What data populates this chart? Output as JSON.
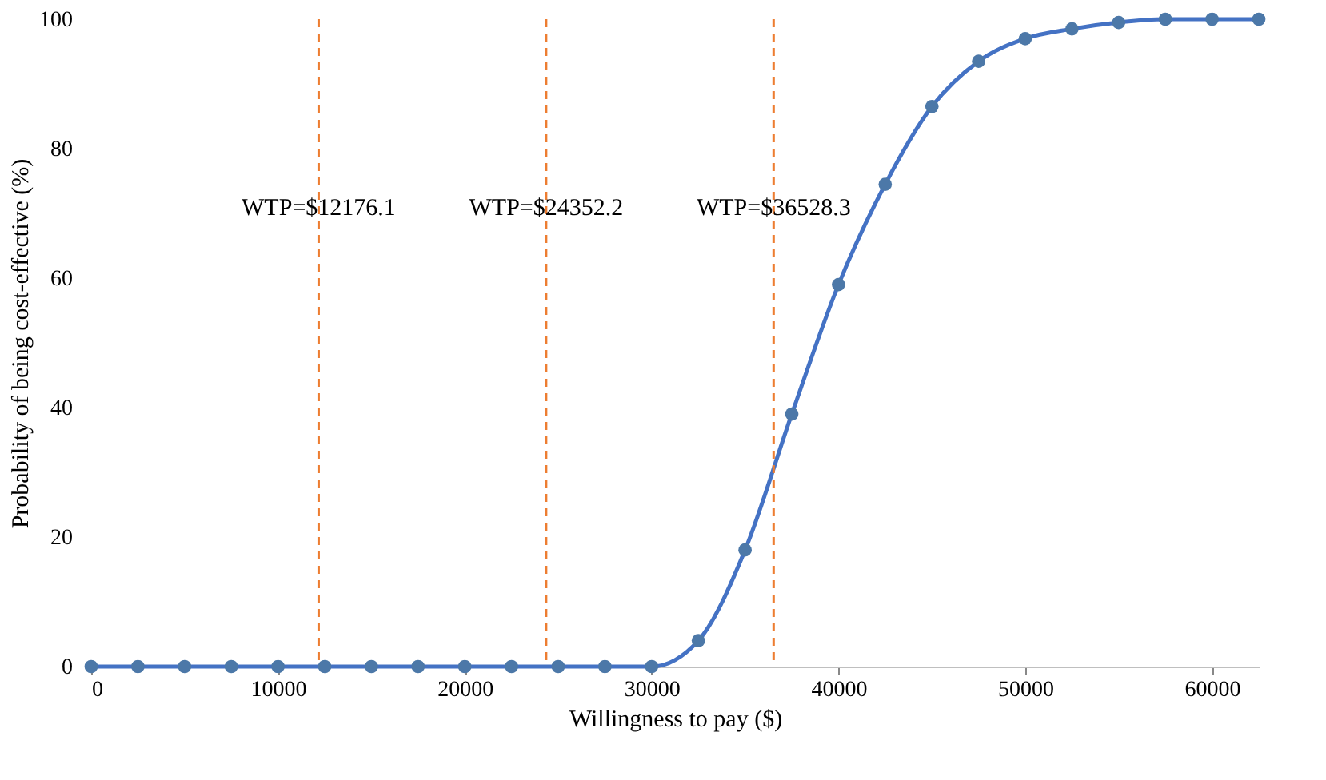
{
  "chart_data": {
    "type": "line",
    "xlabel": "Willingness to pay ($)",
    "ylabel": "Probability of being cost-effective (%)",
    "x": [
      0,
      2500,
      5000,
      7500,
      10000,
      12500,
      15000,
      17500,
      20000,
      22500,
      25000,
      27500,
      30000,
      32500,
      35000,
      37500,
      40000,
      42500,
      45000,
      47500,
      50000,
      52500,
      55000,
      57500,
      60000,
      62500
    ],
    "series": [
      {
        "color": "#4472c4",
        "values": [
          0,
          0,
          0,
          0,
          0,
          0,
          0,
          0,
          0,
          0,
          0,
          0,
          0,
          4,
          18,
          39,
          59,
          74.5,
          86.5,
          93.5,
          97,
          98.5,
          99.5,
          100,
          100,
          100
        ]
      }
    ],
    "xlim": [
      0,
      62500
    ],
    "xticks": [
      0,
      10000,
      20000,
      30000,
      40000,
      50000,
      60000
    ],
    "ylim": [
      0,
      100
    ],
    "yticks": [
      0,
      20,
      40,
      60,
      80,
      100
    ],
    "ref_lines": [
      {
        "axis": "x",
        "value": 12176.1,
        "label": "WTP=$12176.1",
        "color": "#ed7d31",
        "line_style": "dashed"
      },
      {
        "axis": "x",
        "value": 24352.2,
        "label": "WTP=$24352.2",
        "color": "#ed7d31",
        "line_style": "dashed"
      },
      {
        "axis": "x",
        "value": 36528.3,
        "label": "WTP=$36528.3",
        "color": "#ed7d31",
        "line_style": "dashed"
      }
    ],
    "marker": "circle",
    "line_style": "solid",
    "grid": false
  }
}
